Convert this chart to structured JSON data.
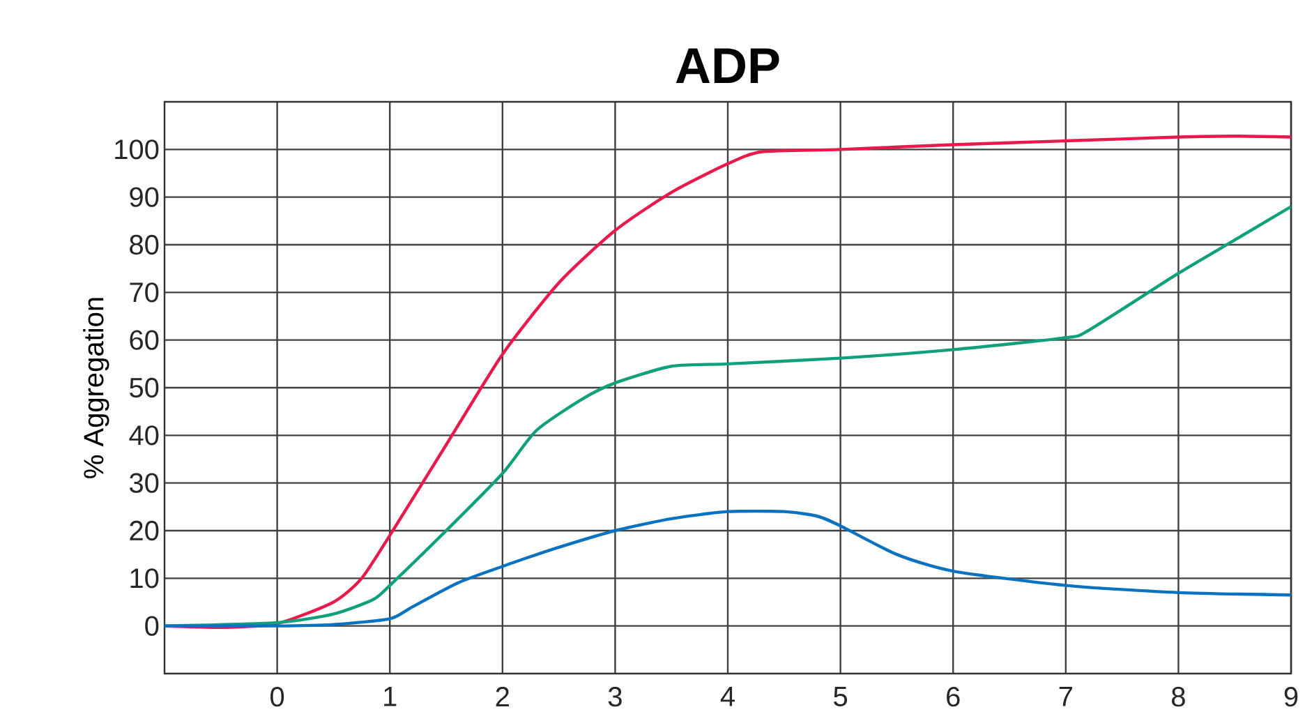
{
  "chart_data": {
    "type": "line",
    "title": "ADP",
    "ylabel": "% Aggregation",
    "xlim": [
      -1,
      9
    ],
    "xticks": [
      0,
      1,
      2,
      3,
      4,
      5,
      6,
      7,
      8,
      9
    ],
    "ylim": [
      -10,
      110
    ],
    "yticks": [
      0,
      10,
      20,
      30,
      40,
      50,
      60,
      70,
      80,
      90,
      100
    ],
    "grid": true,
    "marker": "none",
    "line_style": "solid",
    "series": [
      {
        "color": "#e8194b",
        "x": [
          -1,
          -0.5,
          0,
          0.5,
          0.75,
          1,
          1.5,
          2,
          2.5,
          3,
          3.5,
          4,
          4.3,
          5,
          6,
          7,
          8,
          8.5,
          9
        ],
        "values": [
          0,
          -0.3,
          0.5,
          5,
          10,
          19,
          38,
          57,
          72,
          83,
          91,
          97,
          99.5,
          100,
          101,
          101.8,
          102.6,
          102.8,
          102.6
        ]
      },
      {
        "color": "#10a07c",
        "x": [
          -1,
          0,
          0.5,
          0.85,
          1,
          1.5,
          2,
          2.3,
          2.7,
          3,
          3.5,
          4,
          5,
          6,
          7,
          7.2,
          8,
          8.5,
          9
        ],
        "values": [
          0,
          0.7,
          2.5,
          5.5,
          8.5,
          20,
          32,
          41,
          47.5,
          51,
          54.5,
          55,
          56.2,
          58,
          60.5,
          62,
          74,
          81,
          88
        ]
      },
      {
        "color": "#0a72c0",
        "x": [
          -1,
          0,
          0.5,
          1,
          1.2,
          1.6,
          2,
          2.5,
          3,
          3.5,
          4,
          4.5,
          4.8,
          5,
          5.5,
          6,
          7,
          8,
          9
        ],
        "values": [
          0,
          0,
          0.3,
          1.5,
          4,
          9,
          12.5,
          16.5,
          20,
          22.5,
          24,
          24,
          23,
          21,
          15,
          11.5,
          8.5,
          7,
          6.5
        ]
      }
    ]
  }
}
